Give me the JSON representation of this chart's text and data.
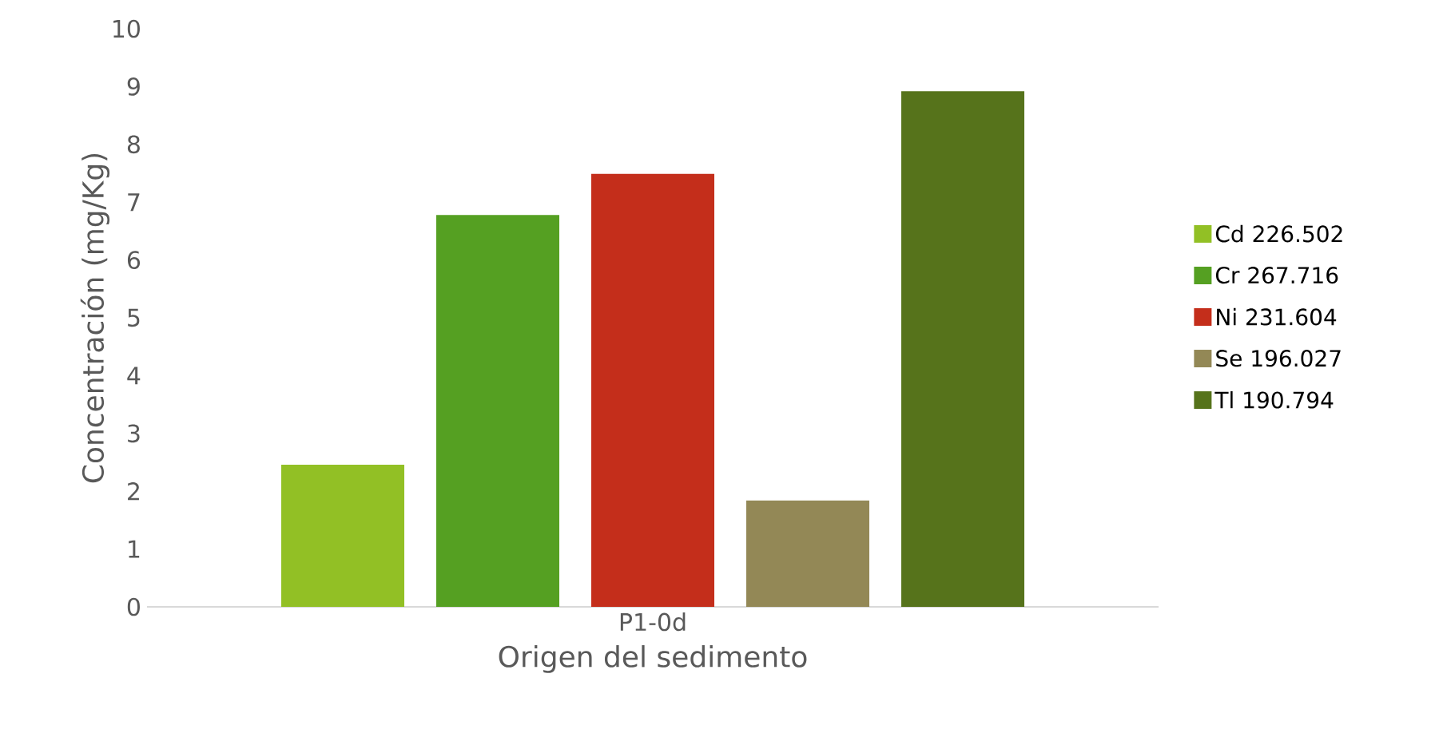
{
  "chart_data": {
    "type": "bar",
    "xlabel": "Origen del sedimento",
    "ylabel": "Concentración (mg/Kg)",
    "categories": [
      "P1-0d"
    ],
    "series": [
      {
        "name": "Cd 226.502",
        "color": "#92c025",
        "values": [
          2.46
        ]
      },
      {
        "name": "Cr 267.716",
        "color": "#55a022",
        "values": [
          6.78
        ]
      },
      {
        "name": "Ni 231.604",
        "color": "#c42e1b",
        "values": [
          7.49
        ]
      },
      {
        "name": "Se 196.027",
        "color": "#938856",
        "values": [
          1.84
        ]
      },
      {
        "name": "Tl 190.794",
        "color": "#56731b",
        "values": [
          8.92
        ]
      }
    ],
    "ylim": [
      0,
      10
    ],
    "yticks": [
      0,
      1,
      2,
      3,
      4,
      5,
      6,
      7,
      8,
      9,
      10
    ],
    "grid": false,
    "legend": "right"
  }
}
